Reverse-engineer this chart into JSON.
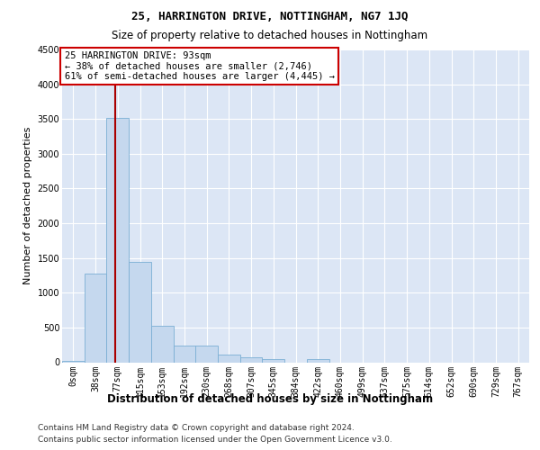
{
  "title": "25, HARRINGTON DRIVE, NOTTINGHAM, NG7 1JQ",
  "subtitle": "Size of property relative to detached houses in Nottingham",
  "xlabel": "Distribution of detached houses by size in Nottingham",
  "ylabel": "Number of detached properties",
  "bar_color": "#c5d8ee",
  "bar_edge_color": "#7bafd4",
  "bin_labels": [
    "0sqm",
    "38sqm",
    "77sqm",
    "115sqm",
    "153sqm",
    "192sqm",
    "230sqm",
    "268sqm",
    "307sqm",
    "345sqm",
    "384sqm",
    "422sqm",
    "460sqm",
    "499sqm",
    "537sqm",
    "575sqm",
    "614sqm",
    "652sqm",
    "690sqm",
    "729sqm",
    "767sqm"
  ],
  "bar_heights": [
    20,
    1270,
    3510,
    1450,
    530,
    240,
    240,
    110,
    70,
    50,
    0,
    40,
    0,
    0,
    0,
    0,
    0,
    0,
    0,
    0,
    0
  ],
  "ylim": [
    0,
    4500
  ],
  "yticks": [
    0,
    500,
    1000,
    1500,
    2000,
    2500,
    3000,
    3500,
    4000,
    4500
  ],
  "vline_x_index": 2,
  "vline_color": "#aa0000",
  "annotation_text_line1": "25 HARRINGTON DRIVE: 93sqm",
  "annotation_text_line2": "← 38% of detached houses are smaller (2,746)",
  "annotation_text_line3": "61% of semi-detached houses are larger (4,445) →",
  "annotation_box_facecolor": "white",
  "annotation_box_edgecolor": "#cc0000",
  "background_color": "#dce6f5",
  "footer_line1": "Contains HM Land Registry data © Crown copyright and database right 2024.",
  "footer_line2": "Contains public sector information licensed under the Open Government Licence v3.0.",
  "title_fontsize": 9,
  "subtitle_fontsize": 8.5,
  "ylabel_fontsize": 8,
  "xlabel_fontsize": 8.5,
  "tick_fontsize": 7,
  "footer_fontsize": 6.5,
  "ann_fontsize": 7.5
}
